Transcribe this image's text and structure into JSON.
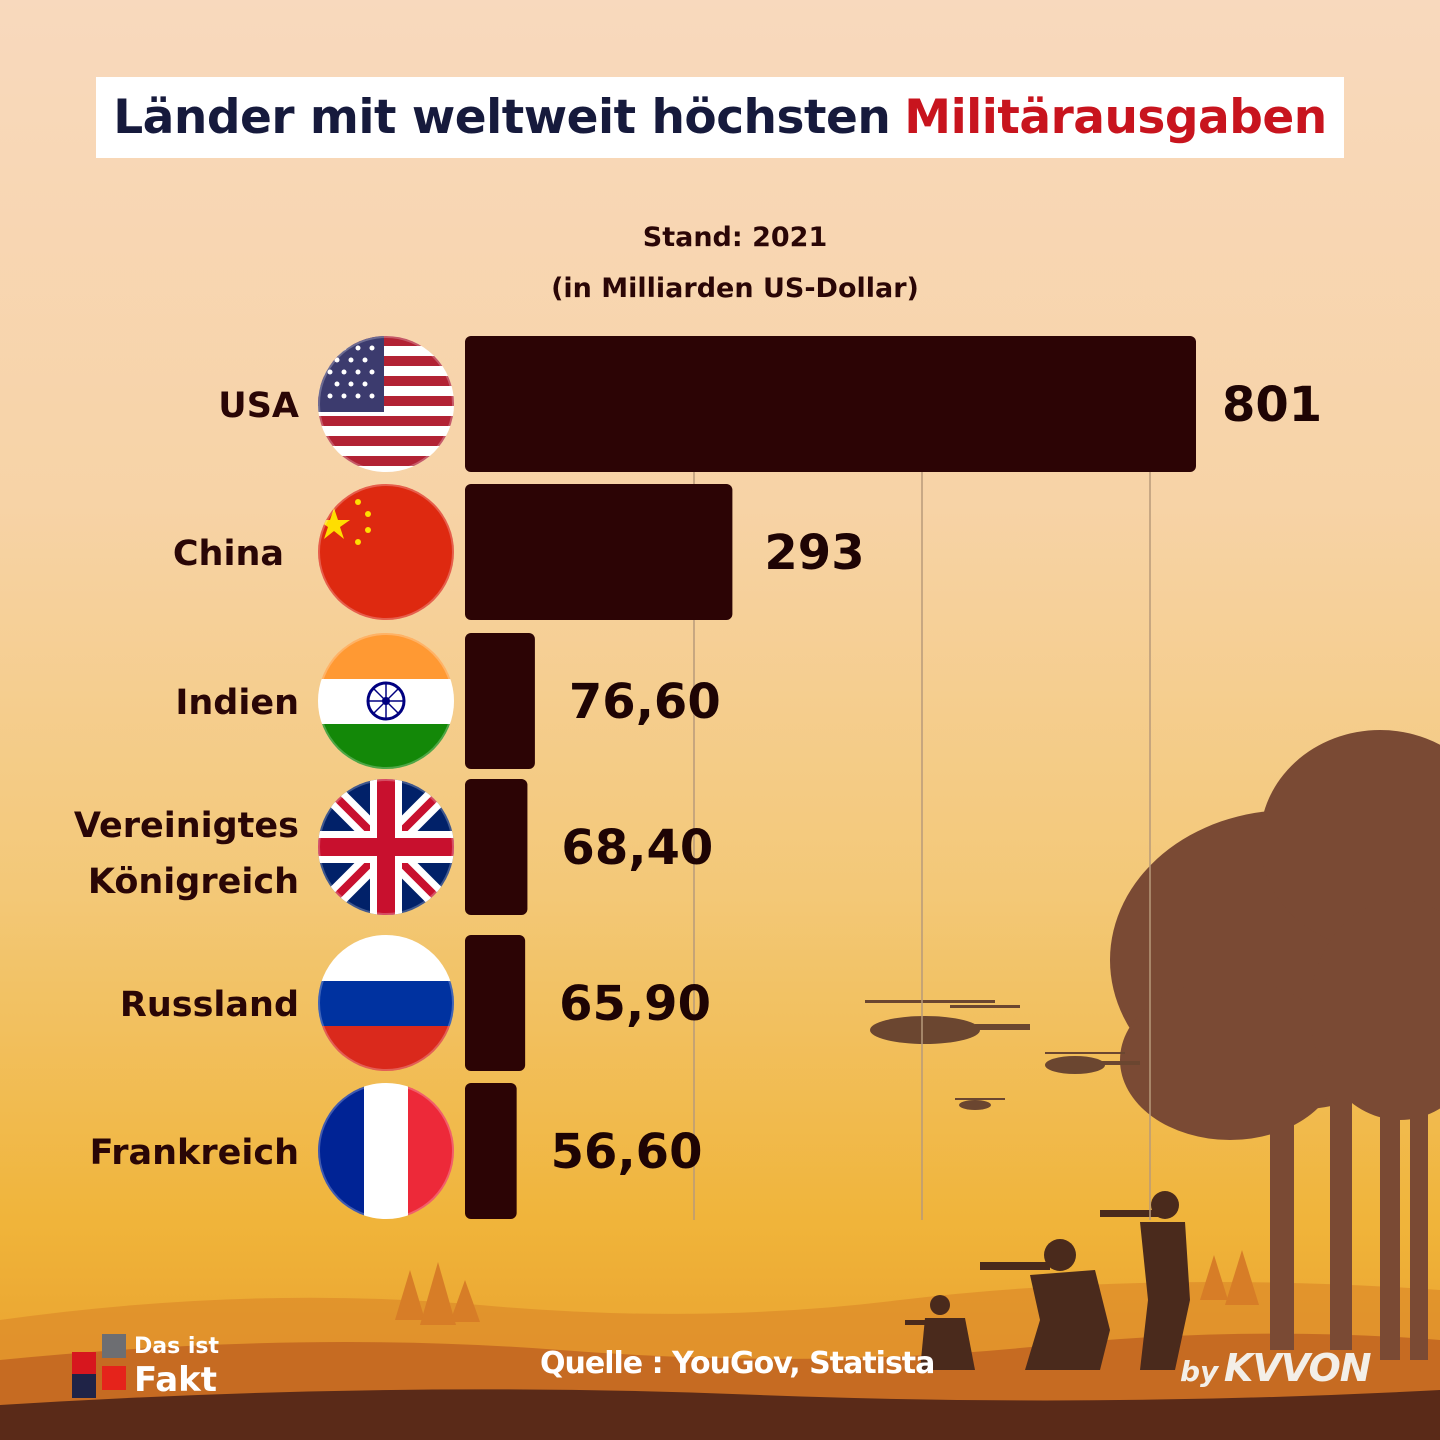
{
  "title": {
    "main": "Länder mit weltweit höchsten",
    "accent": "Militärausgaben"
  },
  "subtitle": {
    "line1": "Stand: 2021",
    "line2": "(in Milliarden US-Dollar)"
  },
  "chart_data": {
    "type": "bar",
    "orientation": "horizontal",
    "categories": [
      "USA",
      "China",
      "Indien",
      "Vereinigtes Königreich",
      "Russland",
      "Frankreich"
    ],
    "category_lines": [
      [
        "USA"
      ],
      [
        "China"
      ],
      [
        "Indien"
      ],
      [
        "Vereinigtes",
        "Königreich"
      ],
      [
        "Russland"
      ],
      [
        "Frankreich"
      ]
    ],
    "values": [
      801,
      293,
      76.6,
      68.4,
      65.9,
      56.6
    ],
    "value_labels": [
      "801",
      "293",
      "76,60",
      "68,40",
      "65,90",
      "56,60"
    ],
    "flags": [
      "us-flag-icon",
      "china-flag-icon",
      "india-flag-icon",
      "uk-flag-icon",
      "russia-flag-icon",
      "france-flag-icon"
    ],
    "title": "Länder mit weltweit höchsten Militärausgaben",
    "unit": "Milliarden US-Dollar",
    "xlim": [
      0,
      801
    ],
    "grid": true
  },
  "source": "Quelle : YouGov, Statista",
  "logo": {
    "line1": "Das ist",
    "line2": "Fakt"
  },
  "credit": {
    "by": "by",
    "brand": "KVVON"
  },
  "colors": {
    "bar": "#2c0405",
    "title_accent": "#c8141e",
    "title_main": "#161a3c",
    "silhouette": "#5a3220"
  }
}
